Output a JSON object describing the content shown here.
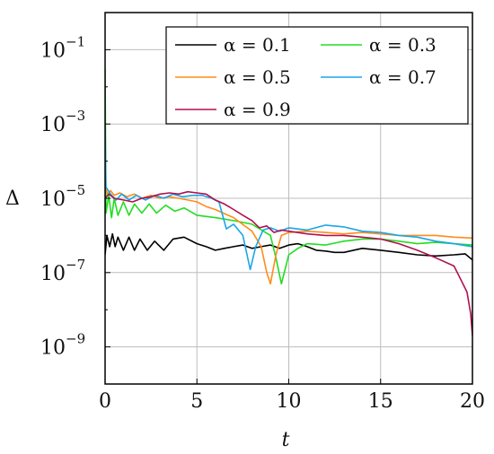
{
  "chart_data": {
    "type": "line",
    "xlabel": "t",
    "ylabel": "Δ",
    "xlim": [
      0,
      20
    ],
    "ylim": [
      1e-10,
      1
    ],
    "yscale": "log",
    "x_ticks": [
      "0",
      "5",
      "10",
      "15",
      "20"
    ],
    "y_ticks": [
      {
        "base": "10",
        "exp": "−1"
      },
      {
        "base": "10",
        "exp": "−3"
      },
      {
        "base": "10",
        "exp": "−5"
      },
      {
        "base": "10",
        "exp": "−7"
      },
      {
        "base": "10",
        "exp": "−9"
      }
    ],
    "grid": true,
    "legend_position": "top-right",
    "series": [
      {
        "name": "α = 0.1",
        "color": "#000000",
        "points": [
          [
            0,
            3e-07
          ],
          [
            0.1,
            1e-06
          ],
          [
            0.25,
            5e-07
          ],
          [
            0.4,
            1.1e-06
          ],
          [
            0.55,
            5e-07
          ],
          [
            0.7,
            9e-07
          ],
          [
            1.0,
            4e-07
          ],
          [
            1.3,
            9e-07
          ],
          [
            1.6,
            4e-07
          ],
          [
            1.9,
            8e-07
          ],
          [
            2.3,
            4e-07
          ],
          [
            2.7,
            7e-07
          ],
          [
            3.2,
            4e-07
          ],
          [
            3.7,
            8e-07
          ],
          [
            4.3,
            9e-07
          ],
          [
            5,
            6e-07
          ],
          [
            5.5,
            5e-07
          ],
          [
            6,
            4e-07
          ],
          [
            6.5,
            4.5e-07
          ],
          [
            7,
            5e-07
          ],
          [
            7.5,
            5.5e-07
          ],
          [
            8,
            4.5e-07
          ],
          [
            8.5,
            5e-07
          ],
          [
            9,
            5.5e-07
          ],
          [
            9.5,
            4.5e-07
          ],
          [
            10,
            5.5e-07
          ],
          [
            10.5,
            6e-07
          ],
          [
            11,
            5e-07
          ],
          [
            11.5,
            4e-07
          ],
          [
            12,
            3.8e-07
          ],
          [
            12.5,
            3.5e-07
          ],
          [
            13,
            3.5e-07
          ],
          [
            14,
            4.5e-07
          ],
          [
            15,
            4e-07
          ],
          [
            16,
            3.5e-07
          ],
          [
            17,
            3e-07
          ],
          [
            18,
            2.8e-07
          ],
          [
            19,
            3e-07
          ],
          [
            19.6,
            3.2e-07
          ],
          [
            20,
            2.2e-07
          ]
        ]
      },
      {
        "name": "α = 0.3",
        "color": "#22dd22",
        "points": [
          [
            0,
            0.03
          ],
          [
            0.05,
            4e-06
          ],
          [
            0.2,
            1.2e-05
          ],
          [
            0.35,
            3e-06
          ],
          [
            0.5,
            1e-05
          ],
          [
            0.7,
            3.5e-06
          ],
          [
            1.0,
            8e-06
          ],
          [
            1.3,
            3.5e-06
          ],
          [
            1.6,
            7e-06
          ],
          [
            2.0,
            4e-06
          ],
          [
            2.4,
            7e-06
          ],
          [
            2.8,
            4e-06
          ],
          [
            3.3,
            6.5e-06
          ],
          [
            3.8,
            4.5e-06
          ],
          [
            4.3,
            5.5e-06
          ],
          [
            5,
            3.5e-06
          ],
          [
            6,
            3e-06
          ],
          [
            7,
            2.5e-06
          ],
          [
            8,
            2e-06
          ],
          [
            9,
            1e-06
          ],
          [
            9.3,
            2.5e-07
          ],
          [
            9.6,
            5e-08
          ],
          [
            10,
            3e-07
          ],
          [
            10.5,
            4.5e-07
          ],
          [
            11,
            6e-07
          ],
          [
            12,
            5.5e-07
          ],
          [
            13,
            7e-07
          ],
          [
            14,
            8e-07
          ],
          [
            15,
            8e-07
          ],
          [
            16,
            7e-07
          ],
          [
            17,
            6e-07
          ],
          [
            18,
            6.5e-07
          ],
          [
            19,
            6e-07
          ],
          [
            20,
            5.5e-07
          ]
        ]
      },
      {
        "name": "α = 0.5",
        "color": "#ff8c1a",
        "points": [
          [
            0,
            2e-05
          ],
          [
            0.15,
            1.3e-05
          ],
          [
            0.3,
            1.6e-05
          ],
          [
            0.5,
            1.2e-05
          ],
          [
            0.8,
            1.4e-05
          ],
          [
            1.2,
            1.1e-05
          ],
          [
            1.6,
            1.3e-05
          ],
          [
            2.0,
            1e-05
          ],
          [
            2.5,
            1.2e-05
          ],
          [
            3.0,
            1e-05
          ],
          [
            3.5,
            1.1e-05
          ],
          [
            4.0,
            1e-05
          ],
          [
            4.5,
            9e-06
          ],
          [
            5,
            8e-06
          ],
          [
            5.5,
            6e-06
          ],
          [
            6,
            5e-06
          ],
          [
            7,
            3e-06
          ],
          [
            8,
            1.3e-06
          ],
          [
            8.5,
            5e-07
          ],
          [
            8.8,
            1e-07
          ],
          [
            9.0,
            5e-08
          ],
          [
            9.3,
            3e-07
          ],
          [
            9.6,
            1e-06
          ],
          [
            10,
            1.2e-06
          ],
          [
            11,
            1.3e-06
          ],
          [
            12,
            1.2e-06
          ],
          [
            13,
            1.1e-06
          ],
          [
            14,
            1.2e-06
          ],
          [
            15,
            1.1e-06
          ],
          [
            16,
            1e-06
          ],
          [
            17,
            1e-06
          ],
          [
            18,
            1e-06
          ],
          [
            19,
            9e-07
          ],
          [
            20,
            8.5e-07
          ]
        ]
      },
      {
        "name": "α = 0.7",
        "color": "#1aa6e6",
        "points": [
          [
            0,
            0.001
          ],
          [
            0.05,
            2e-05
          ],
          [
            0.3,
            1.3e-05
          ],
          [
            0.6,
            9e-06
          ],
          [
            0.9,
            1.3e-05
          ],
          [
            1.3,
            9e-06
          ],
          [
            1.7,
            1.2e-05
          ],
          [
            2.2,
            9e-06
          ],
          [
            2.7,
            1.2e-05
          ],
          [
            3.2,
            1e-05
          ],
          [
            3.7,
            1.3e-05
          ],
          [
            4.2,
            1.1e-05
          ],
          [
            4.8,
            1.2e-05
          ],
          [
            5.3,
            1.2e-05
          ],
          [
            5.8,
            1e-05
          ],
          [
            6.2,
            8e-06
          ],
          [
            6.6,
            1.5e-06
          ],
          [
            7,
            2e-06
          ],
          [
            7.5,
            1e-06
          ],
          [
            7.9,
            1.2e-07
          ],
          [
            8.2,
            5e-07
          ],
          [
            8.6,
            1.4e-06
          ],
          [
            9,
            1.6e-06
          ],
          [
            9.5,
            1.3e-06
          ],
          [
            10,
            1.6e-06
          ],
          [
            11,
            1.4e-06
          ],
          [
            12,
            1.9e-06
          ],
          [
            13,
            1.7e-06
          ],
          [
            14,
            1.3e-06
          ],
          [
            15,
            1.2e-06
          ],
          [
            16,
            1e-06
          ],
          [
            17,
            9e-07
          ],
          [
            18,
            7e-07
          ],
          [
            19,
            6e-07
          ],
          [
            20,
            5e-07
          ]
        ]
      },
      {
        "name": "α = 0.9",
        "color": "#b0104f",
        "points": [
          [
            0,
            1e-05
          ],
          [
            0.2,
            1.3e-05
          ],
          [
            0.5,
            1e-05
          ],
          [
            1,
            9e-06
          ],
          [
            1.5,
            8e-06
          ],
          [
            2,
            1e-05
          ],
          [
            2.5,
            1.1e-05
          ],
          [
            3,
            1.3e-05
          ],
          [
            3.5,
            1.4e-05
          ],
          [
            4,
            1.3e-05
          ],
          [
            4.5,
            1.5e-05
          ],
          [
            5,
            1.4e-05
          ],
          [
            5.5,
            1.3e-05
          ],
          [
            6,
            9e-06
          ],
          [
            6.5,
            7e-06
          ],
          [
            7,
            5e-06
          ],
          [
            7.5,
            3.5e-06
          ],
          [
            8,
            2.5e-06
          ],
          [
            8.4,
            1.6e-06
          ],
          [
            8.8,
            1.8e-06
          ],
          [
            9.2,
            1.2e-06
          ],
          [
            9.6,
            1.4e-06
          ],
          [
            10,
            1.3e-06
          ],
          [
            11,
            1.1e-06
          ],
          [
            12,
            1e-06
          ],
          [
            13,
            1e-06
          ],
          [
            14,
            9e-07
          ],
          [
            15,
            8e-07
          ],
          [
            16,
            6e-07
          ],
          [
            17,
            4e-07
          ],
          [
            18,
            2.5e-07
          ],
          [
            19,
            1.5e-07
          ],
          [
            19.7,
            3e-08
          ],
          [
            19.9,
            8e-09
          ],
          [
            20,
            2e-09
          ]
        ]
      }
    ]
  }
}
